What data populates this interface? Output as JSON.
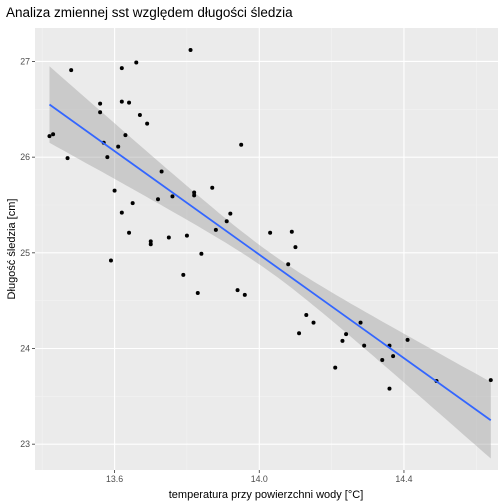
{
  "chart_data": {
    "type": "scatter",
    "title": "Analiza zmiennej sst względem długości śledzia",
    "xlabel": "temperatura przy powierzchni wody [°C]",
    "ylabel": "Długość śledzia [cm]",
    "xlim": [
      13.38,
      14.66
    ],
    "ylim": [
      22.73,
      27.35
    ],
    "x_ticks": [
      13.6,
      14.0,
      14.4
    ],
    "x_tick_labels": [
      "13.6",
      "14.0",
      "14.4"
    ],
    "y_ticks": [
      23,
      24,
      25,
      26,
      27
    ],
    "y_tick_labels": [
      "23",
      "24",
      "25",
      "26",
      "27"
    ],
    "grid": true,
    "legend": "none",
    "points": [
      {
        "x": 13.42,
        "y": 26.22
      },
      {
        "x": 13.43,
        "y": 26.24
      },
      {
        "x": 13.47,
        "y": 25.99
      },
      {
        "x": 13.48,
        "y": 26.91
      },
      {
        "x": 13.56,
        "y": 26.56
      },
      {
        "x": 13.56,
        "y": 26.47
      },
      {
        "x": 13.57,
        "y": 26.15
      },
      {
        "x": 13.58,
        "y": 26.0
      },
      {
        "x": 13.59,
        "y": 24.92
      },
      {
        "x": 13.6,
        "y": 25.65
      },
      {
        "x": 13.61,
        "y": 26.11
      },
      {
        "x": 13.62,
        "y": 26.93
      },
      {
        "x": 13.62,
        "y": 26.58
      },
      {
        "x": 13.62,
        "y": 25.42
      },
      {
        "x": 13.63,
        "y": 26.23
      },
      {
        "x": 13.64,
        "y": 25.21
      },
      {
        "x": 13.64,
        "y": 26.57
      },
      {
        "x": 13.65,
        "y": 25.52
      },
      {
        "x": 13.66,
        "y": 26.99
      },
      {
        "x": 13.67,
        "y": 26.44
      },
      {
        "x": 13.69,
        "y": 26.35
      },
      {
        "x": 13.7,
        "y": 25.12
      },
      {
        "x": 13.7,
        "y": 25.09
      },
      {
        "x": 13.72,
        "y": 25.56
      },
      {
        "x": 13.73,
        "y": 25.85
      },
      {
        "x": 13.75,
        "y": 25.16
      },
      {
        "x": 13.76,
        "y": 25.59
      },
      {
        "x": 13.79,
        "y": 24.77
      },
      {
        "x": 13.8,
        "y": 25.18
      },
      {
        "x": 13.81,
        "y": 27.12
      },
      {
        "x": 13.82,
        "y": 25.6
      },
      {
        "x": 13.82,
        "y": 25.63
      },
      {
        "x": 13.83,
        "y": 24.58
      },
      {
        "x": 13.84,
        "y": 24.99
      },
      {
        "x": 13.87,
        "y": 25.68
      },
      {
        "x": 13.88,
        "y": 25.24
      },
      {
        "x": 13.91,
        "y": 25.33
      },
      {
        "x": 13.92,
        "y": 25.41
      },
      {
        "x": 13.94,
        "y": 24.61
      },
      {
        "x": 13.95,
        "y": 26.13
      },
      {
        "x": 13.96,
        "y": 24.56
      },
      {
        "x": 14.03,
        "y": 25.21
      },
      {
        "x": 14.08,
        "y": 24.88
      },
      {
        "x": 14.09,
        "y": 25.22
      },
      {
        "x": 14.1,
        "y": 25.06
      },
      {
        "x": 14.11,
        "y": 24.16
      },
      {
        "x": 14.13,
        "y": 24.35
      },
      {
        "x": 14.15,
        "y": 24.27
      },
      {
        "x": 14.21,
        "y": 23.8
      },
      {
        "x": 14.23,
        "y": 24.08
      },
      {
        "x": 14.24,
        "y": 24.15
      },
      {
        "x": 14.28,
        "y": 24.27
      },
      {
        "x": 14.29,
        "y": 24.03
      },
      {
        "x": 14.34,
        "y": 23.88
      },
      {
        "x": 14.36,
        "y": 24.03
      },
      {
        "x": 14.36,
        "y": 23.58
      },
      {
        "x": 14.37,
        "y": 23.92
      },
      {
        "x": 14.41,
        "y": 24.09
      },
      {
        "x": 14.49,
        "y": 23.66
      },
      {
        "x": 14.64,
        "y": 23.67
      }
    ],
    "trend": {
      "method": "linear",
      "x_range": [
        13.42,
        14.64
      ],
      "y_range": [
        26.55,
        23.25
      ],
      "ci_lower": [
        26.2,
        22.86
      ],
      "ci_upper": [
        26.83,
        23.66
      ],
      "ci_mid_x": 14.03,
      "ci_mid_halfwidth": 0.1,
      "color": "#3366FF"
    },
    "colors": {
      "panel": "#EBEBEB",
      "grid_major": "#FFFFFF",
      "grid_minor": "#F2F2F2",
      "points": "#000000",
      "ribbon": "#999999"
    }
  }
}
